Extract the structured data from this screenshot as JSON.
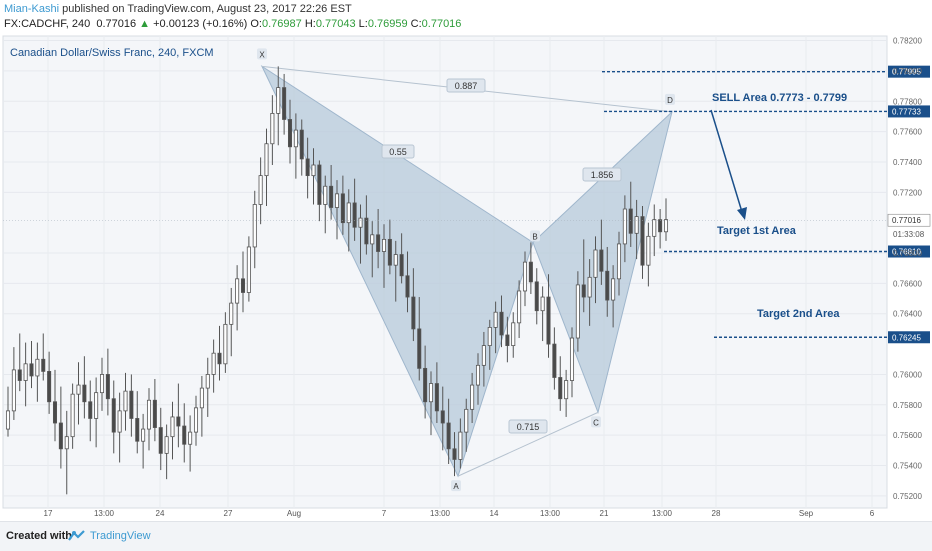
{
  "header": {
    "author": "Mian-Kashi",
    "published": " published on TradingView.com, August 23, 2017 22:26 EST",
    "symbol": "FX:CADCHF, 240",
    "last": "0.77016",
    "change": "+0.00123 (+0.16%)",
    "o_label": "O:",
    "o_value": "0.76987",
    "h_label": "H:",
    "h_value": "0.77043",
    "l_label": "L:",
    "l_value": "0.76959",
    "c_label": "C:",
    "c_value": "0.77016"
  },
  "footer": {
    "created_with": "Created with",
    "brand": "TradingView"
  },
  "colors": {
    "up": "#2e9c3a",
    "accent": "#3d9ad1",
    "pattern": "#b7c9da",
    "level": "#1a4f8a",
    "candle_dark": "#4a4a4a"
  },
  "chart_data": {
    "type": "candlestick",
    "title": "Canadian Dollar/Swiss Franc, 240, FXCM",
    "ylim": [
      0.7512,
      0.7823
    ],
    "yticks": [
      0.782,
      0.78,
      0.778,
      0.776,
      0.774,
      0.772,
      0.768,
      0.766,
      0.764,
      0.76,
      0.758,
      0.756,
      0.754,
      0.752
    ],
    "xticks": [
      "17",
      "13:00",
      "24",
      "27",
      "Aug",
      "7",
      "13:00",
      "14",
      "13:00",
      "21",
      "13:00",
      "28",
      "Sep",
      "6"
    ],
    "countdown": "01:33:08",
    "price_markers": [
      {
        "label": "0.77995",
        "value": 0.77995,
        "style": "level"
      },
      {
        "label": "0.77733",
        "value": 0.77733,
        "style": "level"
      },
      {
        "label": "0.77016",
        "value": 0.77016,
        "style": "last"
      },
      {
        "label": "0.76810",
        "value": 0.7681,
        "style": "level"
      },
      {
        "label": "0.76245",
        "value": 0.76245,
        "style": "level"
      }
    ],
    "pattern": {
      "points": [
        {
          "name": "X",
          "value": 0.7803
        },
        {
          "name": "A",
          "value": 0.7533
        },
        {
          "name": "B",
          "value": 0.7687
        },
        {
          "name": "C",
          "value": 0.7575
        },
        {
          "name": "D",
          "value": 0.7773
        }
      ],
      "ratios": [
        {
          "label": "0.55",
          "between": "XA-AB"
        },
        {
          "label": "1.856",
          "between": "BC-CD"
        },
        {
          "label": "0.715",
          "between": "AB-BC"
        },
        {
          "label": "0.887",
          "between": "XA-XD"
        }
      ]
    },
    "annotations": [
      {
        "text": "SELL Area 0.7773 - 0.7799"
      },
      {
        "text": "Target 1st Area"
      },
      {
        "text": "Target 2nd Area"
      }
    ],
    "candles": [
      {
        "o": 0.7564,
        "h": 0.7592,
        "l": 0.7559,
        "c": 0.7576
      },
      {
        "o": 0.7576,
        "h": 0.7618,
        "l": 0.757,
        "c": 0.7603
      },
      {
        "o": 0.7603,
        "h": 0.7627,
        "l": 0.7589,
        "c": 0.7596
      },
      {
        "o": 0.7596,
        "h": 0.7621,
        "l": 0.7579,
        "c": 0.7607
      },
      {
        "o": 0.7607,
        "h": 0.7622,
        "l": 0.7591,
        "c": 0.7599
      },
      {
        "o": 0.7599,
        "h": 0.7621,
        "l": 0.7582,
        "c": 0.761
      },
      {
        "o": 0.761,
        "h": 0.7627,
        "l": 0.7596,
        "c": 0.7602
      },
      {
        "o": 0.7602,
        "h": 0.7615,
        "l": 0.7574,
        "c": 0.7582
      },
      {
        "o": 0.7582,
        "h": 0.7603,
        "l": 0.7556,
        "c": 0.7568
      },
      {
        "o": 0.7568,
        "h": 0.7592,
        "l": 0.7538,
        "c": 0.7551
      },
      {
        "o": 0.7551,
        "h": 0.7576,
        "l": 0.7521,
        "c": 0.7559
      },
      {
        "o": 0.7559,
        "h": 0.7594,
        "l": 0.7551,
        "c": 0.7587
      },
      {
        "o": 0.7587,
        "h": 0.7608,
        "l": 0.7567,
        "c": 0.7593
      },
      {
        "o": 0.7593,
        "h": 0.7612,
        "l": 0.7571,
        "c": 0.7582
      },
      {
        "o": 0.7582,
        "h": 0.7596,
        "l": 0.7556,
        "c": 0.7571
      },
      {
        "o": 0.7571,
        "h": 0.7598,
        "l": 0.7552,
        "c": 0.7588
      },
      {
        "o": 0.7588,
        "h": 0.7611,
        "l": 0.7576,
        "c": 0.76
      },
      {
        "o": 0.76,
        "h": 0.7617,
        "l": 0.7573,
        "c": 0.7584
      },
      {
        "o": 0.7584,
        "h": 0.7596,
        "l": 0.7548,
        "c": 0.7562
      },
      {
        "o": 0.7562,
        "h": 0.7588,
        "l": 0.7542,
        "c": 0.7576
      },
      {
        "o": 0.7576,
        "h": 0.7601,
        "l": 0.7563,
        "c": 0.7589
      },
      {
        "o": 0.7589,
        "h": 0.76,
        "l": 0.7559,
        "c": 0.7571
      },
      {
        "o": 0.7571,
        "h": 0.7589,
        "l": 0.7548,
        "c": 0.7556
      },
      {
        "o": 0.7556,
        "h": 0.7574,
        "l": 0.7538,
        "c": 0.7564
      },
      {
        "o": 0.7564,
        "h": 0.7591,
        "l": 0.755,
        "c": 0.7583
      },
      {
        "o": 0.7583,
        "h": 0.7597,
        "l": 0.7556,
        "c": 0.7565
      },
      {
        "o": 0.7565,
        "h": 0.7578,
        "l": 0.7537,
        "c": 0.7548
      },
      {
        "o": 0.7548,
        "h": 0.7567,
        "l": 0.7531,
        "c": 0.7559
      },
      {
        "o": 0.7559,
        "h": 0.7582,
        "l": 0.7544,
        "c": 0.7572
      },
      {
        "o": 0.7572,
        "h": 0.7594,
        "l": 0.7552,
        "c": 0.7566
      },
      {
        "o": 0.7566,
        "h": 0.7581,
        "l": 0.7542,
        "c": 0.7554
      },
      {
        "o": 0.7554,
        "h": 0.7573,
        "l": 0.7536,
        "c": 0.7562
      },
      {
        "o": 0.7562,
        "h": 0.7586,
        "l": 0.7553,
        "c": 0.7578
      },
      {
        "o": 0.7578,
        "h": 0.7599,
        "l": 0.7559,
        "c": 0.7591
      },
      {
        "o": 0.7591,
        "h": 0.7611,
        "l": 0.7572,
        "c": 0.76
      },
      {
        "o": 0.76,
        "h": 0.7623,
        "l": 0.7588,
        "c": 0.7614
      },
      {
        "o": 0.7614,
        "h": 0.7632,
        "l": 0.7596,
        "c": 0.7607
      },
      {
        "o": 0.7607,
        "h": 0.7641,
        "l": 0.7601,
        "c": 0.7633
      },
      {
        "o": 0.7633,
        "h": 0.7657,
        "l": 0.7612,
        "c": 0.7647
      },
      {
        "o": 0.7647,
        "h": 0.7672,
        "l": 0.7629,
        "c": 0.7663
      },
      {
        "o": 0.7663,
        "h": 0.7681,
        "l": 0.7641,
        "c": 0.7654
      },
      {
        "o": 0.7654,
        "h": 0.7691,
        "l": 0.7648,
        "c": 0.7684
      },
      {
        "o": 0.7684,
        "h": 0.7721,
        "l": 0.767,
        "c": 0.7712
      },
      {
        "o": 0.7712,
        "h": 0.7743,
        "l": 0.7699,
        "c": 0.7731
      },
      {
        "o": 0.7731,
        "h": 0.7762,
        "l": 0.7711,
        "c": 0.7752
      },
      {
        "o": 0.7752,
        "h": 0.7784,
        "l": 0.7738,
        "c": 0.7772
      },
      {
        "o": 0.7772,
        "h": 0.7803,
        "l": 0.7751,
        "c": 0.7789
      },
      {
        "o": 0.7789,
        "h": 0.7798,
        "l": 0.7758,
        "c": 0.7768
      },
      {
        "o": 0.7768,
        "h": 0.7781,
        "l": 0.7739,
        "c": 0.775
      },
      {
        "o": 0.775,
        "h": 0.7772,
        "l": 0.7729,
        "c": 0.7761
      },
      {
        "o": 0.7761,
        "h": 0.7768,
        "l": 0.7731,
        "c": 0.7742
      },
      {
        "o": 0.7742,
        "h": 0.7756,
        "l": 0.7716,
        "c": 0.7731
      },
      {
        "o": 0.7731,
        "h": 0.7749,
        "l": 0.7712,
        "c": 0.7738
      },
      {
        "o": 0.7738,
        "h": 0.7741,
        "l": 0.7701,
        "c": 0.7712
      },
      {
        "o": 0.7712,
        "h": 0.7731,
        "l": 0.7693,
        "c": 0.7724
      },
      {
        "o": 0.7724,
        "h": 0.7738,
        "l": 0.7702,
        "c": 0.771
      },
      {
        "o": 0.771,
        "h": 0.7728,
        "l": 0.7689,
        "c": 0.7719
      },
      {
        "o": 0.7719,
        "h": 0.7731,
        "l": 0.7692,
        "c": 0.77
      },
      {
        "o": 0.77,
        "h": 0.7722,
        "l": 0.7681,
        "c": 0.7713
      },
      {
        "o": 0.7713,
        "h": 0.7729,
        "l": 0.7688,
        "c": 0.7697
      },
      {
        "o": 0.7697,
        "h": 0.7712,
        "l": 0.7673,
        "c": 0.7703
      },
      {
        "o": 0.7703,
        "h": 0.7718,
        "l": 0.7679,
        "c": 0.7686
      },
      {
        "o": 0.7686,
        "h": 0.7701,
        "l": 0.7664,
        "c": 0.7692
      },
      {
        "o": 0.7692,
        "h": 0.7709,
        "l": 0.767,
        "c": 0.7681
      },
      {
        "o": 0.7681,
        "h": 0.7699,
        "l": 0.7657,
        "c": 0.7689
      },
      {
        "o": 0.7689,
        "h": 0.7702,
        "l": 0.7666,
        "c": 0.7672
      },
      {
        "o": 0.7672,
        "h": 0.7688,
        "l": 0.7648,
        "c": 0.7679
      },
      {
        "o": 0.7679,
        "h": 0.7693,
        "l": 0.766,
        "c": 0.7665
      },
      {
        "o": 0.7665,
        "h": 0.7681,
        "l": 0.7641,
        "c": 0.7651
      },
      {
        "o": 0.7651,
        "h": 0.767,
        "l": 0.7622,
        "c": 0.763
      },
      {
        "o": 0.763,
        "h": 0.7651,
        "l": 0.7596,
        "c": 0.7604
      },
      {
        "o": 0.7604,
        "h": 0.7619,
        "l": 0.7571,
        "c": 0.7582
      },
      {
        "o": 0.7582,
        "h": 0.7602,
        "l": 0.756,
        "c": 0.7594
      },
      {
        "o": 0.7594,
        "h": 0.7608,
        "l": 0.7568,
        "c": 0.7576
      },
      {
        "o": 0.7576,
        "h": 0.7592,
        "l": 0.755,
        "c": 0.7568
      },
      {
        "o": 0.7568,
        "h": 0.7584,
        "l": 0.7541,
        "c": 0.7551
      },
      {
        "o": 0.7551,
        "h": 0.7562,
        "l": 0.7533,
        "c": 0.7544
      },
      {
        "o": 0.7544,
        "h": 0.7571,
        "l": 0.7538,
        "c": 0.7562
      },
      {
        "o": 0.7562,
        "h": 0.7584,
        "l": 0.7549,
        "c": 0.7577
      },
      {
        "o": 0.7577,
        "h": 0.7601,
        "l": 0.7568,
        "c": 0.7593
      },
      {
        "o": 0.7593,
        "h": 0.7614,
        "l": 0.758,
        "c": 0.7606
      },
      {
        "o": 0.7606,
        "h": 0.7628,
        "l": 0.7592,
        "c": 0.7619
      },
      {
        "o": 0.7619,
        "h": 0.7636,
        "l": 0.7603,
        "c": 0.7631
      },
      {
        "o": 0.7631,
        "h": 0.7648,
        "l": 0.7614,
        "c": 0.7641
      },
      {
        "o": 0.7641,
        "h": 0.7652,
        "l": 0.7618,
        "c": 0.7626
      },
      {
        "o": 0.7626,
        "h": 0.7638,
        "l": 0.7608,
        "c": 0.7619
      },
      {
        "o": 0.7619,
        "h": 0.7641,
        "l": 0.7611,
        "c": 0.7634
      },
      {
        "o": 0.7634,
        "h": 0.7662,
        "l": 0.7624,
        "c": 0.7655
      },
      {
        "o": 0.7655,
        "h": 0.7681,
        "l": 0.7645,
        "c": 0.7674
      },
      {
        "o": 0.7674,
        "h": 0.7687,
        "l": 0.7653,
        "c": 0.7661
      },
      {
        "o": 0.7661,
        "h": 0.767,
        "l": 0.7633,
        "c": 0.7642
      },
      {
        "o": 0.7642,
        "h": 0.7658,
        "l": 0.7622,
        "c": 0.7651
      },
      {
        "o": 0.7651,
        "h": 0.7666,
        "l": 0.7611,
        "c": 0.762
      },
      {
        "o": 0.762,
        "h": 0.7631,
        "l": 0.759,
        "c": 0.7598
      },
      {
        "o": 0.7598,
        "h": 0.7612,
        "l": 0.7576,
        "c": 0.7584
      },
      {
        "o": 0.7584,
        "h": 0.7603,
        "l": 0.7572,
        "c": 0.7596
      },
      {
        "o": 0.7596,
        "h": 0.7631,
        "l": 0.7585,
        "c": 0.7624
      },
      {
        "o": 0.7624,
        "h": 0.7668,
        "l": 0.7615,
        "c": 0.7659
      },
      {
        "o": 0.7659,
        "h": 0.7689,
        "l": 0.7641,
        "c": 0.7651
      },
      {
        "o": 0.7651,
        "h": 0.7676,
        "l": 0.7632,
        "c": 0.7664
      },
      {
        "o": 0.7664,
        "h": 0.7691,
        "l": 0.7647,
        "c": 0.7682
      },
      {
        "o": 0.7682,
        "h": 0.7702,
        "l": 0.7659,
        "c": 0.7668
      },
      {
        "o": 0.7668,
        "h": 0.7684,
        "l": 0.7638,
        "c": 0.7649
      },
      {
        "o": 0.7649,
        "h": 0.7672,
        "l": 0.7631,
        "c": 0.7663
      },
      {
        "o": 0.7663,
        "h": 0.7694,
        "l": 0.7652,
        "c": 0.7686
      },
      {
        "o": 0.7686,
        "h": 0.7718,
        "l": 0.7674,
        "c": 0.7709
      },
      {
        "o": 0.7709,
        "h": 0.7727,
        "l": 0.7684,
        "c": 0.7693
      },
      {
        "o": 0.7693,
        "h": 0.7715,
        "l": 0.7676,
        "c": 0.7704
      },
      {
        "o": 0.7704,
        "h": 0.7711,
        "l": 0.7663,
        "c": 0.7672
      },
      {
        "o": 0.7672,
        "h": 0.77,
        "l": 0.7658,
        "c": 0.7691
      },
      {
        "o": 0.7691,
        "h": 0.7712,
        "l": 0.7678,
        "c": 0.7702
      },
      {
        "o": 0.7702,
        "h": 0.7709,
        "l": 0.7683,
        "c": 0.7694
      },
      {
        "o": 0.7694,
        "h": 0.7716,
        "l": 0.7688,
        "c": 0.7702
      }
    ]
  }
}
